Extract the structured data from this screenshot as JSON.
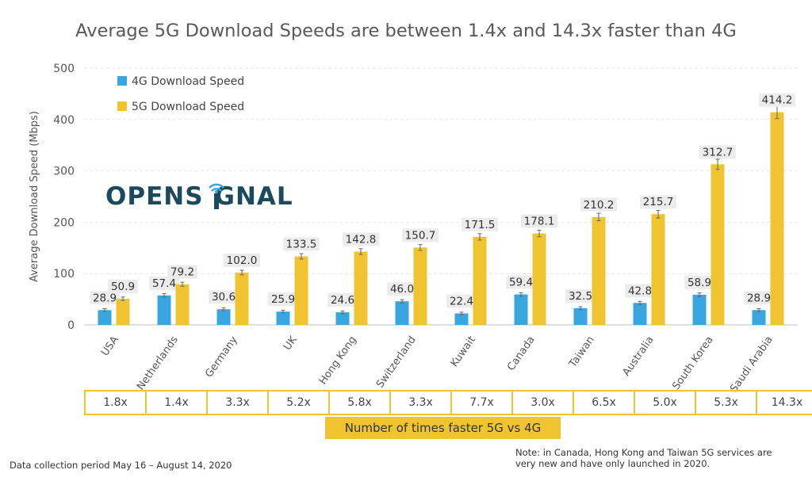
{
  "chart_data": {
    "type": "bar",
    "title": "Average 5G Download Speeds are between 1.4x and 14.3x faster than 4G",
    "ylabel": "Average Download Speed (Mbps)",
    "xlabel": "",
    "ylim": [
      0,
      500
    ],
    "yticks": [
      "0",
      "100",
      "200",
      "300",
      "400",
      "500"
    ],
    "grid": true,
    "legend_position": "top-left",
    "categories": [
      "USA",
      "Netherlands",
      "Germany",
      "UK",
      "Hong Kong",
      "Switzerland",
      "Kuwait",
      "Canada",
      "Taiwan",
      "Australia",
      "South Korea",
      "Saudi Arabia"
    ],
    "series": [
      {
        "name": "4G Download Speed",
        "color": "#3aa6df",
        "values": [
          28.9,
          57.4,
          30.6,
          25.9,
          24.6,
          46.0,
          22.4,
          59.4,
          32.5,
          42.8,
          58.9,
          28.9
        ],
        "labels": [
          "28.9",
          "57.4",
          "30.6",
          "25.9",
          "24.6",
          "46.0",
          "22.4",
          "59.4",
          "32.5",
          "42.8",
          "58.9",
          "28.9"
        ]
      },
      {
        "name": "5G Download Speed",
        "color": "#f0c330",
        "values": [
          50.9,
          79.2,
          102.0,
          133.5,
          142.8,
          150.7,
          171.5,
          178.1,
          210.2,
          215.7,
          312.7,
          414.2
        ],
        "labels": [
          "50.9",
          "79.2",
          "102.0",
          "133.5",
          "142.8",
          "150.7",
          "171.5",
          "178.1",
          "210.2",
          "215.7",
          "312.7",
          "414.2"
        ]
      }
    ],
    "ratios": [
      "1.8x",
      "1.4x",
      "3.3x",
      "5.2x",
      "5.8x",
      "3.3x",
      "7.7x",
      "3.0x",
      "6.5x",
      "5.0x",
      "5.3x",
      "14.3x"
    ],
    "ratio_caption": "Number of times faster 5G vs 4G"
  },
  "logo": {
    "text_left": "OPENS",
    "text_right": "GNAL"
  },
  "footnotes": {
    "left": "Data collection period May 16 – August 14, 2020",
    "right": "Note: in Canada, Hong Kong and Taiwan 5G services are very new and have only launched in 2020."
  }
}
